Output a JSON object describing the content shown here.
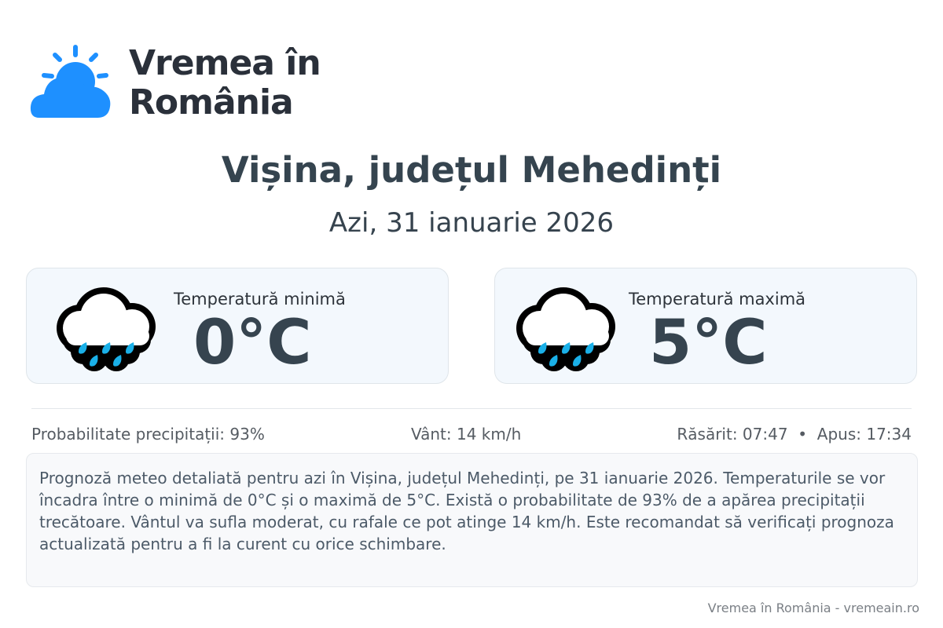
{
  "logo": {
    "line1": "Vremea în",
    "line2": "România",
    "color": "#1e90ff"
  },
  "header": {
    "title": "Vișina, județul Mehedinți",
    "subtitle": "Azi, 31 ianuarie 2026"
  },
  "cards": [
    {
      "label": "Temperatură minimă",
      "value": "0°C",
      "icon": "rain-cloud-icon"
    },
    {
      "label": "Temperatură maximă",
      "value": "5°C",
      "icon": "rain-cloud-icon"
    }
  ],
  "stats": {
    "precipitation": "Probabilitate precipitații: 93%",
    "wind": "Vânt: 14 km/h",
    "sun": "Răsărit: 07:47  •  Apus: 17:34"
  },
  "description": "Prognoză meteo detaliată pentru azi în Vișina, județul Mehedinți, pe 31 ianuarie 2026. Temperaturile se vor încadra între o minimă de 0°C și o maximă de 5°C. Există o probabilitate de 93% de a apărea precipitații trecătoare. Vântul va sufla moderat, cu rafale ce pot atinge 14 km/h. Este recomandat să verificați prognoza actualizată pentru a fi la curent cu orice schimbare.",
  "footer": "Vremea în România - vremeain.ro",
  "colors": {
    "drop": "#1ab0e8",
    "title": "#35444f"
  }
}
